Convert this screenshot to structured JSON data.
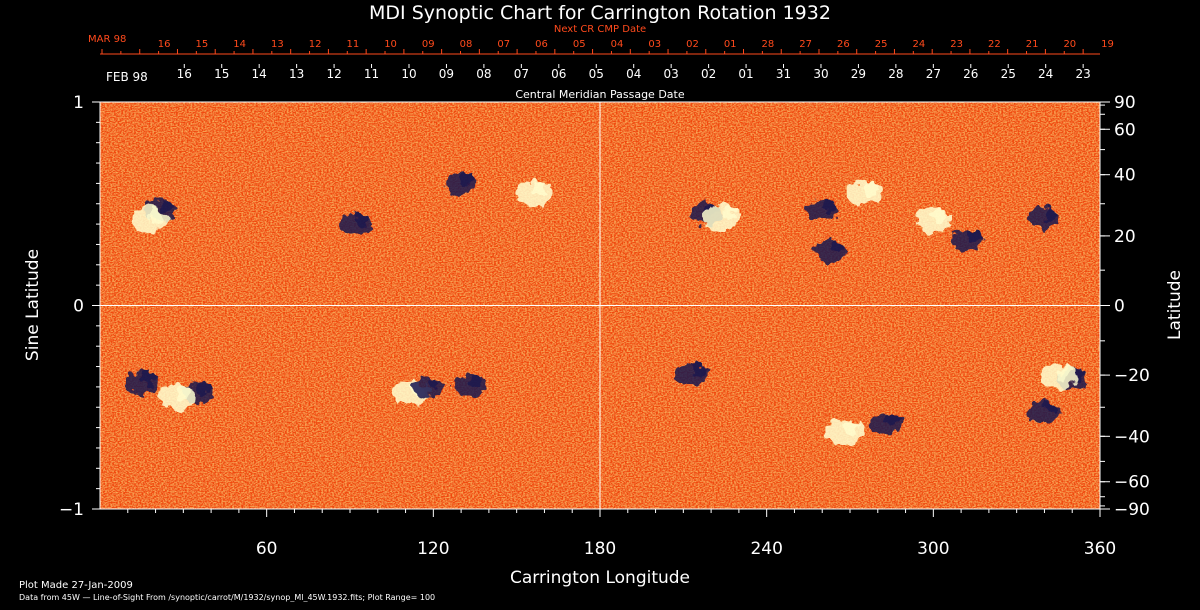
{
  "chart_data": {
    "type": "heatmap",
    "title": "MDI Synoptic Chart for Carrington Rotation 1932",
    "xlabel": "Carrington Longitude",
    "ylabel_left": "Sine Latitude",
    "ylabel_right": "Latitude",
    "xlim": [
      0,
      360
    ],
    "ylim": [
      -1,
      1
    ],
    "x_ticks": [
      60,
      120,
      180,
      240,
      300,
      360
    ],
    "y_left_ticks": [
      {
        "value": 1,
        "label": "1"
      },
      {
        "value": 0,
        "label": "0"
      },
      {
        "value": -1,
        "label": "−1"
      }
    ],
    "y_right_ticks": [
      {
        "deg": 90,
        "label": "90"
      },
      {
        "deg": 60,
        "label": "60"
      },
      {
        "deg": 40,
        "label": "40"
      },
      {
        "deg": 20,
        "label": "20"
      },
      {
        "deg": 0,
        "label": "0"
      },
      {
        "deg": -20,
        "label": "−20"
      },
      {
        "deg": -40,
        "label": "−40"
      },
      {
        "deg": -60,
        "label": "−60"
      },
      {
        "deg": -90,
        "label": "−90"
      }
    ],
    "next_cr_axis": {
      "title": "Next CR CMP Date",
      "start_label": "MAR 98",
      "labels": [
        "16",
        "15",
        "14",
        "13",
        "12",
        "11",
        "10",
        "09",
        "08",
        "07",
        "06",
        "05",
        "04",
        "03",
        "02",
        "01",
        "28",
        "27",
        "26",
        "25",
        "24",
        "23",
        "22",
        "21",
        "20",
        "19"
      ],
      "color": "#ff4a1c"
    },
    "cmp_axis": {
      "title": "Central Meridian Passage Date",
      "start_label": "FEB 98",
      "labels": [
        "16",
        "15",
        "14",
        "13",
        "12",
        "11",
        "10",
        "09",
        "08",
        "07",
        "06",
        "05",
        "04",
        "03",
        "02",
        "01",
        "31",
        "30",
        "29",
        "28",
        "27",
        "26",
        "25",
        "24",
        "23"
      ]
    },
    "grid_lines": {
      "x": [
        180
      ],
      "y": [
        0
      ]
    },
    "colormap": {
      "background": "#f04a0e",
      "positive": "#ffffd0",
      "negative": "#141450"
    },
    "features": [
      {
        "lon": 22,
        "lat": 0.47,
        "polarity": "negative"
      },
      {
        "lon": 18,
        "lat": 0.42,
        "polarity": "positive"
      },
      {
        "lon": 92,
        "lat": 0.4,
        "polarity": "negative"
      },
      {
        "lon": 130,
        "lat": 0.6,
        "polarity": "negative"
      },
      {
        "lon": 156,
        "lat": 0.55,
        "polarity": "positive"
      },
      {
        "lon": 218,
        "lat": 0.45,
        "polarity": "negative"
      },
      {
        "lon": 224,
        "lat": 0.43,
        "polarity": "positive"
      },
      {
        "lon": 260,
        "lat": 0.47,
        "polarity": "negative"
      },
      {
        "lon": 263,
        "lat": 0.27,
        "polarity": "negative"
      },
      {
        "lon": 275,
        "lat": 0.55,
        "polarity": "positive"
      },
      {
        "lon": 300,
        "lat": 0.42,
        "polarity": "positive"
      },
      {
        "lon": 312,
        "lat": 0.32,
        "polarity": "negative"
      },
      {
        "lon": 340,
        "lat": 0.43,
        "polarity": "negative"
      },
      {
        "lon": 15,
        "lat": -0.38,
        "polarity": "negative"
      },
      {
        "lon": 35,
        "lat": -0.43,
        "polarity": "negative"
      },
      {
        "lon": 28,
        "lat": -0.45,
        "polarity": "positive"
      },
      {
        "lon": 112,
        "lat": -0.43,
        "polarity": "positive"
      },
      {
        "lon": 118,
        "lat": -0.4,
        "polarity": "negative"
      },
      {
        "lon": 133,
        "lat": -0.39,
        "polarity": "negative"
      },
      {
        "lon": 213,
        "lat": -0.34,
        "polarity": "negative"
      },
      {
        "lon": 268,
        "lat": -0.62,
        "polarity": "positive"
      },
      {
        "lon": 283,
        "lat": -0.58,
        "polarity": "negative"
      },
      {
        "lon": 340,
        "lat": -0.52,
        "polarity": "negative"
      },
      {
        "lon": 350,
        "lat": -0.36,
        "polarity": "negative"
      },
      {
        "lon": 345,
        "lat": -0.35,
        "polarity": "positive"
      }
    ]
  },
  "footer": {
    "plot_made": "Plot Made 27-Jan-2009",
    "data_source": "Data from 45W — Line-of-Sight From /synoptic/carrot/M/1932/synop_Ml_45W.1932.fits; Plot Range= 100"
  }
}
